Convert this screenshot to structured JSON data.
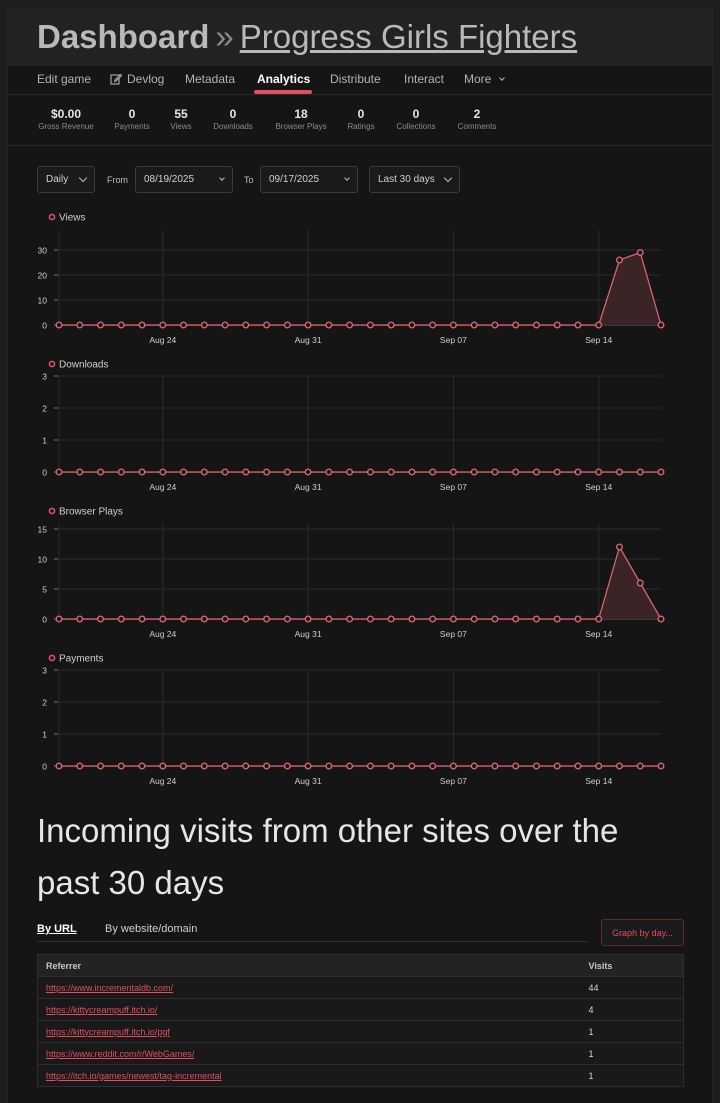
{
  "header": {
    "dashboard_label": "Dashboard",
    "separator": "»",
    "game_title": "Progress Girls Fighters"
  },
  "nav": {
    "items": [
      {
        "label": "Edit game",
        "icon": null,
        "active": false
      },
      {
        "label": "Devlog",
        "icon": "edit-icon",
        "active": false
      },
      {
        "label": "Metadata",
        "icon": null,
        "active": false
      },
      {
        "label": "Analytics",
        "icon": null,
        "active": true
      },
      {
        "label": "Distribute",
        "icon": null,
        "active": false
      },
      {
        "label": "Interact",
        "icon": null,
        "active": false
      },
      {
        "label": "More",
        "icon": "chevron-down-icon",
        "active": false
      }
    ]
  },
  "stats": [
    {
      "value": "$0.00",
      "label": "Gross Revenue"
    },
    {
      "value": "0",
      "label": "Payments"
    },
    {
      "value": "55",
      "label": "Views"
    },
    {
      "value": "0",
      "label": "Downloads"
    },
    {
      "value": "18",
      "label": "Browser Plays"
    },
    {
      "value": "0",
      "label": "Ratings"
    },
    {
      "value": "0",
      "label": "Collections"
    },
    {
      "value": "2",
      "label": "Comments"
    }
  ],
  "controls": {
    "interval": "Daily",
    "from_label": "From",
    "from_value": "08/19/2025",
    "to_label": "To",
    "to_value": "09/17/2025",
    "range": "Last 30 days"
  },
  "colors": {
    "accent": "#e34d5f",
    "line": "#d9646e",
    "area": "#3a2426",
    "grid": "#2c2c2c",
    "panel": "#151515"
  },
  "chart_data": [
    {
      "type": "area",
      "title": "Views",
      "x": [
        "2025-08-19",
        "2025-08-20",
        "2025-08-21",
        "2025-08-22",
        "2025-08-23",
        "2025-08-24",
        "2025-08-25",
        "2025-08-26",
        "2025-08-27",
        "2025-08-28",
        "2025-08-29",
        "2025-08-30",
        "2025-08-31",
        "2025-09-01",
        "2025-09-02",
        "2025-09-03",
        "2025-09-04",
        "2025-09-05",
        "2025-09-06",
        "2025-09-07",
        "2025-09-08",
        "2025-09-09",
        "2025-09-10",
        "2025-09-11",
        "2025-09-12",
        "2025-09-13",
        "2025-09-14",
        "2025-09-15",
        "2025-09-16",
        "2025-09-17"
      ],
      "values": [
        0,
        0,
        0,
        0,
        0,
        0,
        0,
        0,
        0,
        0,
        0,
        0,
        0,
        0,
        0,
        0,
        0,
        0,
        0,
        0,
        0,
        0,
        0,
        0,
        0,
        0,
        0,
        26,
        29,
        0
      ],
      "xticks": [
        "Aug 24",
        "Aug 31",
        "Sep 07",
        "Sep 14"
      ],
      "yticks": [
        0,
        10,
        20,
        30
      ],
      "ylim": [
        0,
        38
      ]
    },
    {
      "type": "area",
      "title": "Downloads",
      "x": [
        "2025-08-19",
        "2025-08-20",
        "2025-08-21",
        "2025-08-22",
        "2025-08-23",
        "2025-08-24",
        "2025-08-25",
        "2025-08-26",
        "2025-08-27",
        "2025-08-28",
        "2025-08-29",
        "2025-08-30",
        "2025-08-31",
        "2025-09-01",
        "2025-09-02",
        "2025-09-03",
        "2025-09-04",
        "2025-09-05",
        "2025-09-06",
        "2025-09-07",
        "2025-09-08",
        "2025-09-09",
        "2025-09-10",
        "2025-09-11",
        "2025-09-12",
        "2025-09-13",
        "2025-09-14",
        "2025-09-15",
        "2025-09-16",
        "2025-09-17"
      ],
      "values": [
        0,
        0,
        0,
        0,
        0,
        0,
        0,
        0,
        0,
        0,
        0,
        0,
        0,
        0,
        0,
        0,
        0,
        0,
        0,
        0,
        0,
        0,
        0,
        0,
        0,
        0,
        0,
        0,
        0,
        0
      ],
      "xticks": [
        "Aug 24",
        "Aug 31",
        "Sep 07",
        "Sep 14"
      ],
      "yticks": [
        0,
        1,
        2,
        3
      ],
      "ylim": [
        0,
        3
      ]
    },
    {
      "type": "area",
      "title": "Browser Plays",
      "x": [
        "2025-08-19",
        "2025-08-20",
        "2025-08-21",
        "2025-08-22",
        "2025-08-23",
        "2025-08-24",
        "2025-08-25",
        "2025-08-26",
        "2025-08-27",
        "2025-08-28",
        "2025-08-29",
        "2025-08-30",
        "2025-08-31",
        "2025-09-01",
        "2025-09-02",
        "2025-09-03",
        "2025-09-04",
        "2025-09-05",
        "2025-09-06",
        "2025-09-07",
        "2025-09-08",
        "2025-09-09",
        "2025-09-10",
        "2025-09-11",
        "2025-09-12",
        "2025-09-13",
        "2025-09-14",
        "2025-09-15",
        "2025-09-16",
        "2025-09-17"
      ],
      "values": [
        0,
        0,
        0,
        0,
        0,
        0,
        0,
        0,
        0,
        0,
        0,
        0,
        0,
        0,
        0,
        0,
        0,
        0,
        0,
        0,
        0,
        0,
        0,
        0,
        0,
        0,
        0,
        12,
        6,
        0
      ],
      "xticks": [
        "Aug 24",
        "Aug 31",
        "Sep 07",
        "Sep 14"
      ],
      "yticks": [
        0,
        5,
        10,
        15
      ],
      "ylim": [
        0,
        16
      ]
    },
    {
      "type": "area",
      "title": "Payments",
      "x": [
        "2025-08-19",
        "2025-08-20",
        "2025-08-21",
        "2025-08-22",
        "2025-08-23",
        "2025-08-24",
        "2025-08-25",
        "2025-08-26",
        "2025-08-27",
        "2025-08-28",
        "2025-08-29",
        "2025-08-30",
        "2025-08-31",
        "2025-09-01",
        "2025-09-02",
        "2025-09-03",
        "2025-09-04",
        "2025-09-05",
        "2025-09-06",
        "2025-09-07",
        "2025-09-08",
        "2025-09-09",
        "2025-09-10",
        "2025-09-11",
        "2025-09-12",
        "2025-09-13",
        "2025-09-14",
        "2025-09-15",
        "2025-09-16",
        "2025-09-17"
      ],
      "values": [
        0,
        0,
        0,
        0,
        0,
        0,
        0,
        0,
        0,
        0,
        0,
        0,
        0,
        0,
        0,
        0,
        0,
        0,
        0,
        0,
        0,
        0,
        0,
        0,
        0,
        0,
        0,
        0,
        0,
        0
      ],
      "xticks": [
        "Aug 24",
        "Aug 31",
        "Sep 07",
        "Sep 14"
      ],
      "yticks": [
        0,
        1,
        2,
        3
      ],
      "ylim": [
        0,
        3
      ]
    }
  ],
  "referrers": {
    "title": "Incoming visits from other sites over the past 30 days",
    "tabs": [
      "By URL",
      "By website/domain"
    ],
    "graph_button": "Graph by day...",
    "columns": [
      "Referrer",
      "Visits"
    ],
    "rows": [
      {
        "url": "https://www.incrementaldb.com/",
        "visits": "44"
      },
      {
        "url": "https://kittycreampuff.itch.io/",
        "visits": "4"
      },
      {
        "url": "https://kittycreampuff.itch.io/pgf",
        "visits": "1"
      },
      {
        "url": "https://www.reddit.com/r/WebGames/",
        "visits": "1"
      },
      {
        "url": "https://itch.io/games/newest/tag-incremental",
        "visits": "1"
      }
    ]
  }
}
